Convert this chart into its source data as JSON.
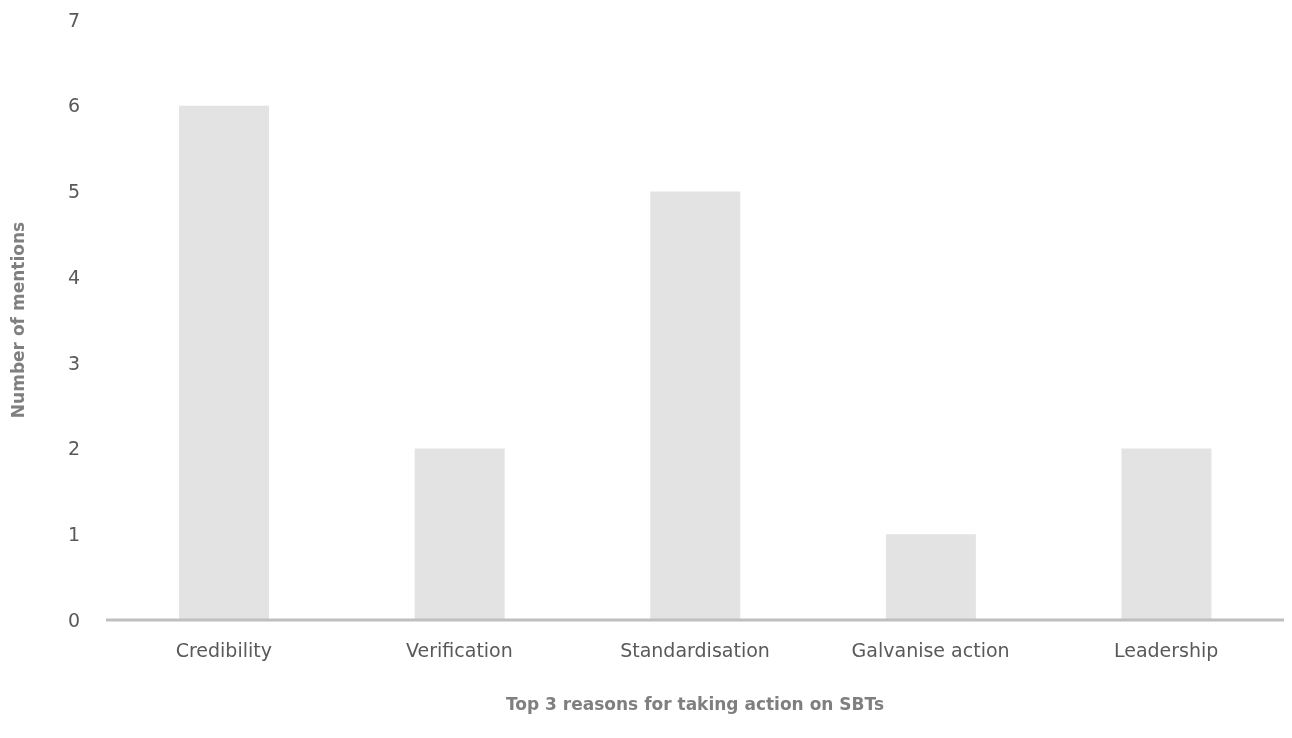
{
  "chart_data": {
    "type": "bar",
    "xlabel": "Top 3 reasons for taking action on SBTs",
    "ylabel": "Number of mentions",
    "categories": [
      "Credibility",
      "Verification",
      "Standardisation",
      "Galvanise action",
      "Leadership"
    ],
    "values": [
      6,
      2,
      5,
      1,
      2
    ],
    "color": "#e3e3e3",
    "ylim": [
      0,
      7
    ],
    "yticks": [
      0,
      1,
      2,
      3,
      4,
      5,
      6,
      7
    ]
  }
}
